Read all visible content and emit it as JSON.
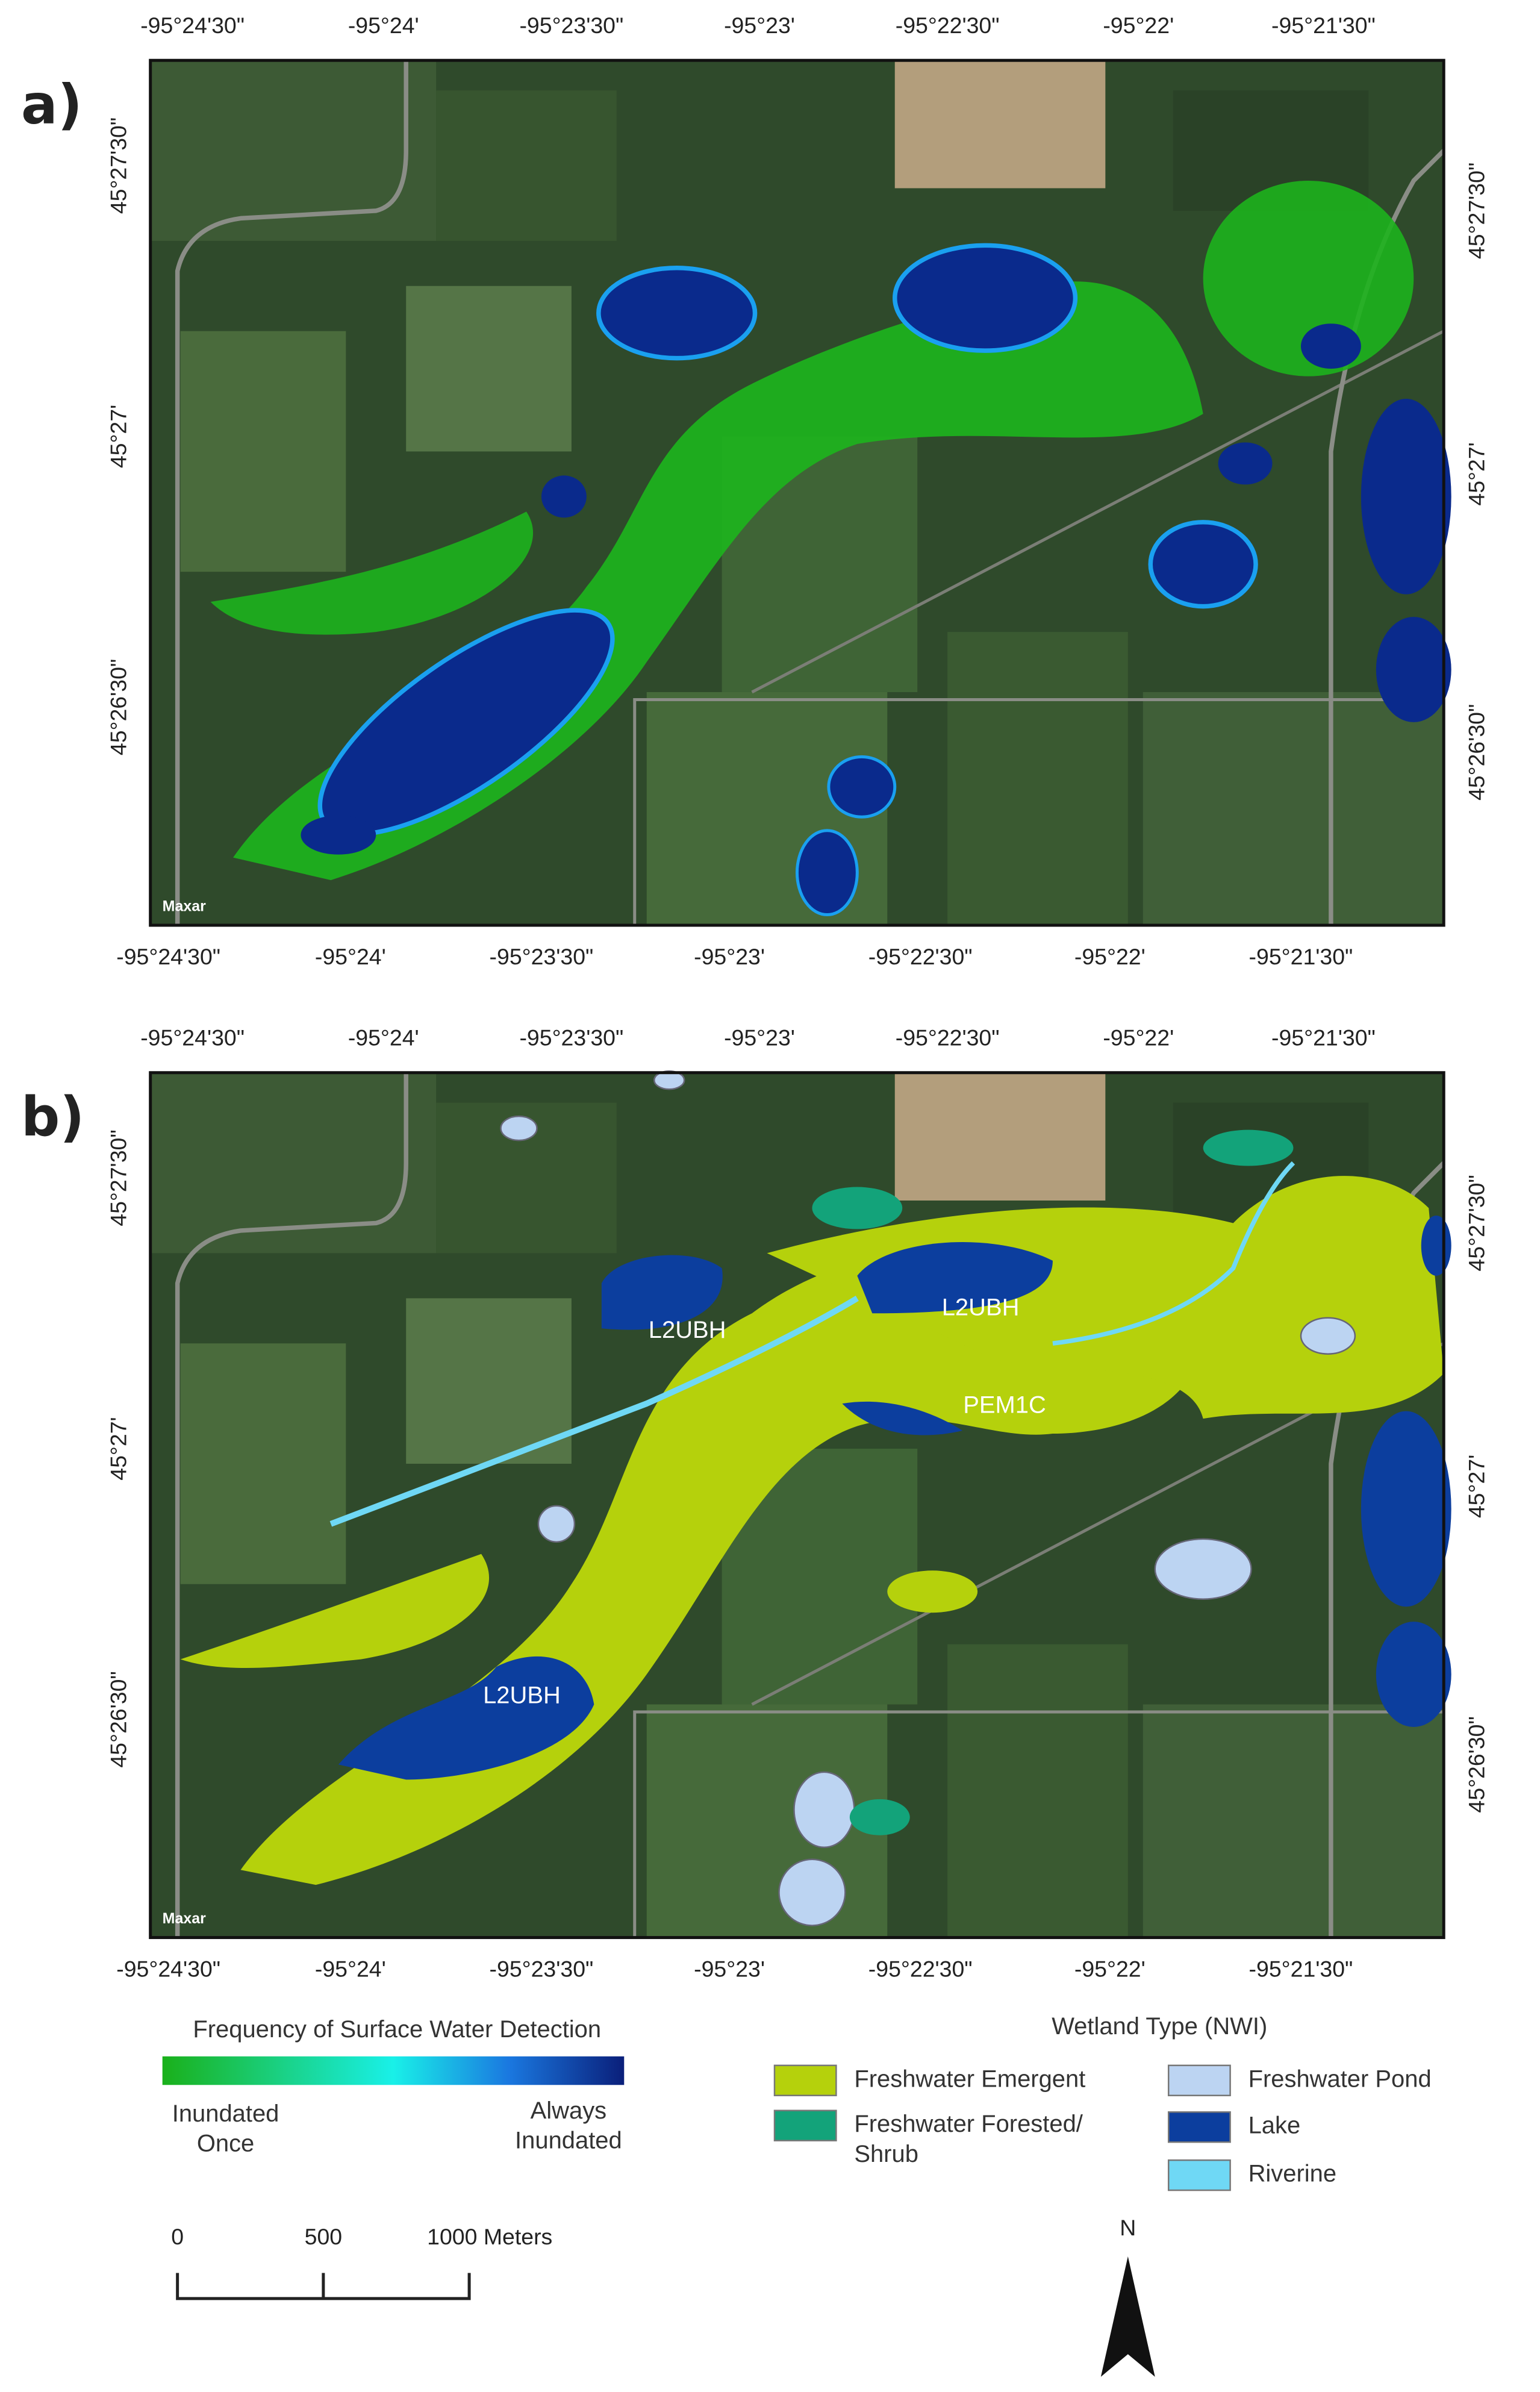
{
  "panels": [
    {
      "label": "a)",
      "attribution": "Maxar"
    },
    {
      "label": "b)",
      "attribution": "Maxar",
      "annotations": [
        "L2UBH",
        "L2UBH",
        "PEM1C",
        "L2UBH"
      ]
    }
  ],
  "longitude_ticks": [
    "-95°24'30\"",
    "-95°24'",
    "-95°23'30\"",
    "-95°23'",
    "-95°22'30\"",
    "-95°22'",
    "-95°21'30\""
  ],
  "latitude_ticks": [
    "45°27'30\"",
    "45°27'",
    "45°26'30\""
  ],
  "legend_a": {
    "title": "Frequency of Surface Water Detection",
    "low_label": [
      "Inundated",
      "Once"
    ],
    "high_label": [
      "Always",
      "Inundated"
    ]
  },
  "legend_b": {
    "title": "Wetland Type (NWI)",
    "items": [
      {
        "label": [
          "Freshwater Emergent"
        ],
        "color": "#b5d10c"
      },
      {
        "label": [
          "Freshwater Forested/",
          "Shrub"
        ],
        "color": "#13a37a"
      },
      {
        "label": [
          "Freshwater Pond"
        ],
        "color": "#bcd4f2"
      },
      {
        "label": [
          "Lake"
        ],
        "color": "#0c3e9e"
      },
      {
        "label": [
          "Riverine"
        ],
        "color": "#6fd8f5"
      }
    ]
  },
  "scale_bar": {
    "labels": [
      "0",
      "500",
      "1000 Meters"
    ]
  },
  "north_arrow": "N"
}
